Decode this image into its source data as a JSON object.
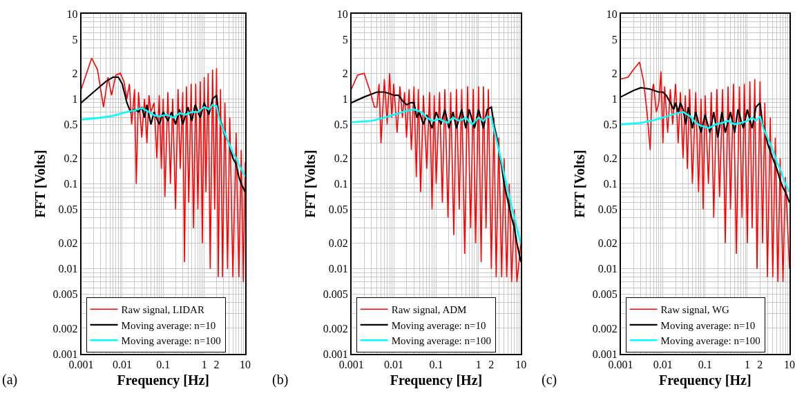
{
  "chart_data": [
    {
      "type": "line",
      "xlabel": "Frequency [Hz]",
      "ylabel": "FFT [Volts]",
      "annotations": [
        "(a)"
      ],
      "log": "xy",
      "grid": true,
      "legend": "bottom left",
      "line_style": "solid",
      "xlim": [
        0.001,
        10
      ],
      "ylim": [
        0.001,
        10
      ],
      "xticks": [
        0.001,
        0.01,
        0.1,
        1,
        2,
        10
      ],
      "yticks": [
        0.001,
        0.002,
        0.005,
        0.01,
        0.02,
        0.05,
        0.1,
        0.2,
        0.5,
        1,
        2,
        5,
        10
      ],
      "series": [
        {
          "name": "Raw signal, LIDAR",
          "color": "#ff0000",
          "x": [
            0.001,
            0.0018,
            0.0025,
            0.0035,
            0.0045,
            0.0055,
            0.007,
            0.009,
            0.011,
            0.013,
            0.015,
            0.017,
            0.02,
            0.022,
            0.025,
            0.03,
            0.035,
            0.04,
            0.045,
            0.05,
            0.06,
            0.07,
            0.08,
            0.09,
            0.1,
            0.11,
            0.13,
            0.15,
            0.17,
            0.2,
            0.23,
            0.26,
            0.3,
            0.33,
            0.37,
            0.42,
            0.48,
            0.55,
            0.62,
            0.7,
            0.8,
            0.9,
            1.0,
            1.1,
            1.25,
            1.4,
            1.6,
            1.8,
            2.0,
            2.2,
            2.5,
            2.8,
            3.2,
            3.7,
            4.2,
            5,
            6,
            7,
            8,
            9,
            10
          ],
          "values": [
            1.3,
            3.0,
            2.2,
            0.8,
            1.8,
            1.1,
            1.9,
            2.0,
            1.6,
            1.0,
            1.5,
            0.5,
            1.3,
            0.1,
            1.2,
            0.35,
            1.0,
            0.3,
            1.1,
            0.7,
            0.9,
            0.2,
            1.1,
            0.15,
            1.0,
            0.07,
            1.2,
            0.1,
            1.0,
            0.05,
            1.3,
            0.15,
            1.2,
            0.012,
            1.4,
            0.06,
            1.5,
            0.03,
            1.5,
            0.05,
            1.6,
            0.02,
            1.8,
            0.08,
            2.0,
            0.01,
            2.2,
            0.05,
            2.3,
            0.008,
            1.3,
            0.008,
            0.9,
            0.01,
            0.6,
            0.008,
            0.4,
            0.008,
            0.25,
            0.007,
            0.18
          ]
        },
        {
          "name": "Moving average: n=10",
          "color": "#000000",
          "x": [
            0.001,
            0.002,
            0.004,
            0.006,
            0.008,
            0.01,
            0.013,
            0.016,
            0.02,
            0.025,
            0.03,
            0.035,
            0.04,
            0.05,
            0.06,
            0.08,
            0.1,
            0.13,
            0.16,
            0.2,
            0.25,
            0.3,
            0.4,
            0.5,
            0.6,
            0.8,
            1.0,
            1.3,
            1.6,
            2.0,
            2.3,
            2.7,
            3,
            4,
            5,
            6,
            7,
            8,
            10
          ],
          "values": [
            0.9,
            1.2,
            1.6,
            1.8,
            1.8,
            1.5,
            0.9,
            0.7,
            0.75,
            0.7,
            0.8,
            0.6,
            0.85,
            0.5,
            0.7,
            0.5,
            0.7,
            0.55,
            0.7,
            0.5,
            0.75,
            0.5,
            0.8,
            0.55,
            0.85,
            0.6,
            0.9,
            0.65,
            1.0,
            1.1,
            0.6,
            0.5,
            0.4,
            0.3,
            0.2,
            0.17,
            0.12,
            0.1,
            0.08
          ]
        },
        {
          "name": "Moving average: n=100",
          "color": "#00ffff",
          "x": [
            0.001,
            0.003,
            0.006,
            0.01,
            0.02,
            0.03,
            0.045,
            0.06,
            0.08,
            0.12,
            0.18,
            0.25,
            0.35,
            0.5,
            0.7,
            1.0,
            1.3,
            1.6,
            2.0,
            2.4,
            3,
            4,
            5,
            6,
            7,
            8,
            10
          ],
          "values": [
            0.57,
            0.6,
            0.63,
            0.68,
            0.73,
            0.78,
            0.7,
            0.64,
            0.62,
            0.65,
            0.6,
            0.68,
            0.65,
            0.7,
            0.7,
            0.8,
            0.75,
            0.85,
            0.82,
            0.55,
            0.42,
            0.3,
            0.23,
            0.2,
            0.17,
            0.15,
            0.12
          ]
        }
      ]
    },
    {
      "type": "line",
      "xlabel": "Frequency [Hz]",
      "ylabel": "FFT [Volts]",
      "annotations": [
        "(b)"
      ],
      "log": "xy",
      "grid": true,
      "legend": "bottom left",
      "line_style": "solid",
      "xlim": [
        0.001,
        10
      ],
      "ylim": [
        0.001,
        10
      ],
      "xticks": [
        0.001,
        0.01,
        0.1,
        1,
        2,
        10
      ],
      "yticks": [
        0.001,
        0.002,
        0.005,
        0.01,
        0.02,
        0.05,
        0.1,
        0.2,
        0.5,
        1,
        2,
        5,
        10
      ],
      "series": [
        {
          "name": "Raw signal, ADM",
          "color": "#ff0000",
          "x": [
            0.001,
            0.0014,
            0.002,
            0.0028,
            0.0035,
            0.004,
            0.0045,
            0.005,
            0.006,
            0.007,
            0.008,
            0.009,
            0.01,
            0.012,
            0.014,
            0.016,
            0.018,
            0.02,
            0.023,
            0.026,
            0.03,
            0.034,
            0.038,
            0.043,
            0.05,
            0.06,
            0.07,
            0.08,
            0.09,
            0.1,
            0.12,
            0.14,
            0.16,
            0.19,
            0.22,
            0.26,
            0.3,
            0.35,
            0.4,
            0.47,
            0.55,
            0.65,
            0.75,
            0.85,
            1.0,
            1.15,
            1.3,
            1.5,
            1.7,
            2.0,
            2.3,
            2.6,
            3.0,
            3.5,
            4.0,
            4.6,
            5.3,
            6,
            7,
            8,
            10
          ],
          "values": [
            1.3,
            1.9,
            2.0,
            1.2,
            0.8,
            0.8,
            1.5,
            0.3,
            1.7,
            0.5,
            2.0,
            0.6,
            1.5,
            0.4,
            1.4,
            0.6,
            1.2,
            0.35,
            1.3,
            0.25,
            1.4,
            0.12,
            1.3,
            0.08,
            1.1,
            0.15,
            1.2,
            0.05,
            1.1,
            0.1,
            1.2,
            0.06,
            1.3,
            0.04,
            1.2,
            0.025,
            1.3,
            0.05,
            1.3,
            0.015,
            1.4,
            0.03,
            1.3,
            0.02,
            1.4,
            0.012,
            1.4,
            0.03,
            1.3,
            0.01,
            0.6,
            0.008,
            0.35,
            0.008,
            0.2,
            0.008,
            0.1,
            0.007,
            0.05,
            0.007,
            0.02
          ]
        },
        {
          "name": "Moving average: n=10",
          "color": "#000000",
          "x": [
            0.001,
            0.002,
            0.004,
            0.006,
            0.008,
            0.01,
            0.013,
            0.016,
            0.02,
            0.025,
            0.03,
            0.035,
            0.04,
            0.05,
            0.06,
            0.08,
            0.1,
            0.13,
            0.16,
            0.2,
            0.25,
            0.3,
            0.4,
            0.5,
            0.6,
            0.8,
            1.0,
            1.3,
            1.6,
            2.0,
            2.3,
            2.7,
            3,
            3.5,
            4,
            5,
            6,
            7,
            8,
            10
          ],
          "values": [
            0.9,
            1.05,
            1.2,
            1.2,
            1.15,
            1.1,
            1.1,
            0.95,
            0.85,
            0.9,
            0.9,
            0.6,
            0.7,
            0.5,
            0.65,
            0.45,
            0.7,
            0.5,
            0.75,
            0.45,
            0.7,
            0.45,
            0.75,
            0.45,
            0.75,
            0.45,
            0.75,
            0.45,
            0.75,
            0.8,
            0.5,
            0.35,
            0.25,
            0.16,
            0.1,
            0.06,
            0.04,
            0.03,
            0.02,
            0.012
          ]
        },
        {
          "name": "Moving average: n=100",
          "color": "#00ffff",
          "x": [
            0.001,
            0.003,
            0.006,
            0.01,
            0.02,
            0.03,
            0.045,
            0.06,
            0.08,
            0.12,
            0.18,
            0.25,
            0.35,
            0.5,
            0.7,
            1.0,
            1.3,
            1.6,
            2.0,
            2.4,
            3,
            3.5,
            4,
            5,
            6,
            7,
            8,
            10
          ],
          "values": [
            0.53,
            0.55,
            0.6,
            0.65,
            0.72,
            0.75,
            0.7,
            0.6,
            0.55,
            0.58,
            0.52,
            0.6,
            0.55,
            0.6,
            0.5,
            0.6,
            0.55,
            0.62,
            0.6,
            0.4,
            0.25,
            0.18,
            0.13,
            0.08,
            0.055,
            0.04,
            0.03,
            0.02
          ]
        }
      ]
    },
    {
      "type": "line",
      "xlabel": "Frequency [Hz]",
      "ylabel": "FFT [Volts]",
      "annotations": [
        "(c)"
      ],
      "log": "xy",
      "grid": true,
      "legend": "bottom left",
      "line_style": "solid",
      "xlim": [
        0.001,
        10
      ],
      "ylim": [
        0.001,
        10
      ],
      "xticks": [
        0.001,
        0.01,
        0.1,
        1,
        2,
        10
      ],
      "yticks": [
        0.001,
        0.002,
        0.005,
        0.01,
        0.02,
        0.05,
        0.1,
        0.2,
        0.5,
        1,
        2,
        5,
        10
      ],
      "series": [
        {
          "name": "Raw signal, WG",
          "color": "#ff0000",
          "x": [
            0.001,
            0.0015,
            0.002,
            0.0028,
            0.0035,
            0.0042,
            0.005,
            0.0055,
            0.006,
            0.007,
            0.008,
            0.009,
            0.01,
            0.011,
            0.013,
            0.015,
            0.017,
            0.02,
            0.023,
            0.026,
            0.03,
            0.034,
            0.038,
            0.043,
            0.05,
            0.06,
            0.07,
            0.08,
            0.09,
            0.1,
            0.12,
            0.14,
            0.16,
            0.19,
            0.22,
            0.26,
            0.3,
            0.35,
            0.4,
            0.47,
            0.55,
            0.65,
            0.75,
            0.85,
            1.0,
            1.15,
            1.3,
            1.5,
            1.7,
            2.0,
            2.3,
            2.6,
            3.0,
            3.5,
            4.0,
            4.6,
            5.3,
            6,
            7,
            8,
            10
          ],
          "values": [
            1.7,
            1.8,
            2.2,
            2.7,
            1.6,
            0.7,
            0.25,
            1.2,
            1.5,
            0.7,
            0.9,
            2.1,
            0.3,
            1.4,
            0.4,
            1.3,
            0.5,
            1.5,
            0.3,
            1.2,
            0.2,
            1.1,
            0.15,
            1.3,
            0.1,
            1.2,
            0.08,
            1.0,
            0.05,
            1.1,
            0.1,
            1.2,
            0.04,
            1.3,
            0.07,
            1.3,
            0.02,
            1.4,
            0.05,
            1.5,
            0.015,
            1.4,
            0.04,
            1.5,
            0.02,
            1.6,
            0.03,
            1.7,
            0.01,
            1.6,
            0.02,
            0.9,
            0.008,
            0.6,
            0.008,
            0.35,
            0.007,
            0.2,
            0.007,
            0.12,
            0.01
          ]
        },
        {
          "name": "Moving average: n=10",
          "color": "#000000",
          "x": [
            0.001,
            0.002,
            0.003,
            0.005,
            0.008,
            0.01,
            0.012,
            0.015,
            0.018,
            0.02,
            0.023,
            0.026,
            0.03,
            0.035,
            0.04,
            0.05,
            0.06,
            0.08,
            0.1,
            0.13,
            0.16,
            0.2,
            0.25,
            0.3,
            0.4,
            0.5,
            0.6,
            0.8,
            1.0,
            1.3,
            1.6,
            2.0,
            2.3,
            2.7,
            3,
            4,
            5,
            6,
            7,
            8,
            10
          ],
          "values": [
            1.05,
            1.25,
            1.35,
            1.3,
            1.2,
            1.2,
            1.1,
            0.9,
            0.75,
            0.9,
            0.7,
            0.9,
            0.75,
            0.5,
            0.8,
            0.45,
            0.7,
            0.4,
            0.65,
            0.4,
            0.7,
            0.35,
            0.7,
            0.4,
            0.7,
            0.4,
            0.75,
            0.45,
            0.75,
            0.45,
            0.8,
            0.9,
            0.5,
            0.4,
            0.3,
            0.2,
            0.15,
            0.11,
            0.09,
            0.08,
            0.06
          ]
        },
        {
          "name": "Moving average: n=100",
          "color": "#00ffff",
          "x": [
            0.001,
            0.003,
            0.006,
            0.01,
            0.02,
            0.03,
            0.045,
            0.06,
            0.08,
            0.1,
            0.12,
            0.18,
            0.25,
            0.35,
            0.5,
            0.7,
            1.0,
            1.3,
            1.6,
            2.0,
            2.4,
            3,
            4,
            5,
            6,
            7,
            8,
            10
          ],
          "values": [
            0.5,
            0.52,
            0.56,
            0.6,
            0.67,
            0.7,
            0.62,
            0.52,
            0.48,
            0.47,
            0.45,
            0.5,
            0.52,
            0.55,
            0.5,
            0.52,
            0.55,
            0.6,
            0.55,
            0.62,
            0.45,
            0.35,
            0.25,
            0.18,
            0.15,
            0.12,
            0.1,
            0.08
          ]
        }
      ]
    }
  ]
}
